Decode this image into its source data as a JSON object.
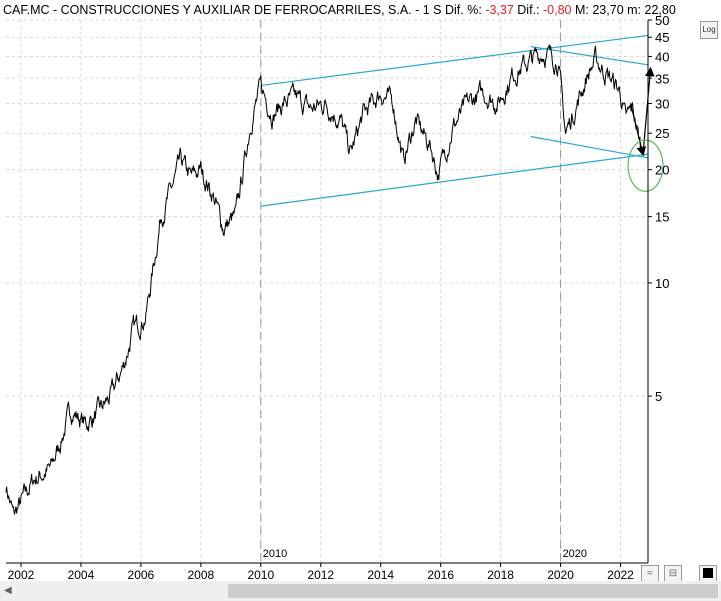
{
  "header": {
    "title": "CAF.MC - CONSTRUCCIONES Y AUXILIAR DE FERROCARRILES, S.A. -  1 S",
    "dif_pct_label": "Dif. %:",
    "dif_pct_value": "-3,37",
    "dif_label": "Dif.:",
    "dif_value": "-0,80",
    "max_label": "M:",
    "max_value": "23,70",
    "min_label": "m:",
    "min_value": "22,80"
  },
  "buttons": {
    "log_label": "Log"
  },
  "colors": {
    "price": "#000000",
    "trendline": "#29a9d1",
    "ellipse": "#5cb85c",
    "grid": "#d8d8d8",
    "negative": "#e02020"
  },
  "chart_data": {
    "type": "line",
    "scale": "log",
    "ylim": [
      1.8,
      50
    ],
    "xlim": [
      "2001-07",
      "2022-12"
    ],
    "y_ticks": [
      50,
      45,
      40,
      35,
      30,
      25,
      20,
      15,
      10,
      5
    ],
    "x_ticks": [
      "2002",
      "2004",
      "2006",
      "2008",
      "2010",
      "2012",
      "2014",
      "2016",
      "2018",
      "2020",
      "2022"
    ],
    "decade_markers": [
      "2010",
      "2020"
    ],
    "grid": true,
    "series": [
      {
        "values": [
          [
            "2001-07",
            2.9
          ],
          [
            "2001-10",
            2.4
          ],
          [
            "2002-01",
            2.6
          ],
          [
            "2002-06",
            3.0
          ],
          [
            "2003-01",
            3.2
          ],
          [
            "2003-06",
            4.0
          ],
          [
            "2003-09",
            4.6
          ],
          [
            "2004-03",
            4.2
          ],
          [
            "2004-09",
            4.6
          ],
          [
            "2005-01",
            5.0
          ],
          [
            "2005-06",
            6.0
          ],
          [
            "2005-10",
            7.5
          ],
          [
            "2006-03",
            8.2
          ],
          [
            "2006-06",
            11.0
          ],
          [
            "2006-09",
            15.0
          ],
          [
            "2007-01",
            17.5
          ],
          [
            "2007-05",
            21.0
          ],
          [
            "2007-09",
            19.0
          ],
          [
            "2008-01",
            20.0
          ],
          [
            "2008-06",
            17.0
          ],
          [
            "2008-10",
            14.0
          ],
          [
            "2009-03",
            15.0
          ],
          [
            "2009-06",
            20.0
          ],
          [
            "2009-09",
            27.0
          ],
          [
            "2010-01",
            33.0
          ],
          [
            "2010-06",
            28.0
          ],
          [
            "2010-10",
            30.0
          ],
          [
            "2011-03",
            31.0
          ],
          [
            "2011-09",
            29.0
          ],
          [
            "2012-03",
            30.0
          ],
          [
            "2012-09",
            27.0
          ],
          [
            "2013-01",
            22.0
          ],
          [
            "2013-06",
            28.0
          ],
          [
            "2014-01",
            32.0
          ],
          [
            "2014-06",
            30.0
          ],
          [
            "2014-10",
            21.0
          ],
          [
            "2015-03",
            27.0
          ],
          [
            "2015-09",
            23.0
          ],
          [
            "2015-12",
            19.5
          ],
          [
            "2016-06",
            26.0
          ],
          [
            "2016-12",
            30.0
          ],
          [
            "2017-06",
            32.0
          ],
          [
            "2017-12",
            30.0
          ],
          [
            "2018-06",
            36.0
          ],
          [
            "2019-01",
            39.0
          ],
          [
            "2019-06",
            41.0
          ],
          [
            "2019-12",
            39.0
          ],
          [
            "2020-03",
            25.0
          ],
          [
            "2020-06",
            28.0
          ],
          [
            "2020-12",
            36.0
          ],
          [
            "2021-03",
            39.0
          ],
          [
            "2021-09",
            35.0
          ],
          [
            "2022-01",
            32.0
          ],
          [
            "2022-03",
            27.0
          ],
          [
            "2022-06",
            29.0
          ],
          [
            "2022-09",
            23.0
          ],
          [
            "2022-10",
            22.5
          ]
        ]
      }
    ],
    "annotations": {
      "trendlines": [
        {
          "from": [
            "2010-01",
            33.5
          ],
          "to": [
            "2022-12",
            45.5
          ]
        },
        {
          "from": [
            "2010-01",
            16.0
          ],
          "to": [
            "2022-12",
            22.0
          ]
        },
        {
          "from": [
            "2019-01",
            42.5
          ],
          "to": [
            "2022-12",
            38.0
          ]
        },
        {
          "from": [
            "2019-01",
            24.5
          ],
          "to": [
            "2022-12",
            21.5
          ]
        }
      ],
      "arrows": [
        {
          "from": [
            "2022-05",
            30.0
          ],
          "to": [
            "2022-10",
            22.0
          ]
        },
        {
          "from": [
            "2022-10",
            22.0
          ],
          "to": [
            "2023-01",
            37.0
          ]
        }
      ],
      "ellipse": {
        "center": [
          "2022-11",
          20.5
        ],
        "rx_months": 7,
        "ry_ratio": 1.17
      }
    }
  }
}
